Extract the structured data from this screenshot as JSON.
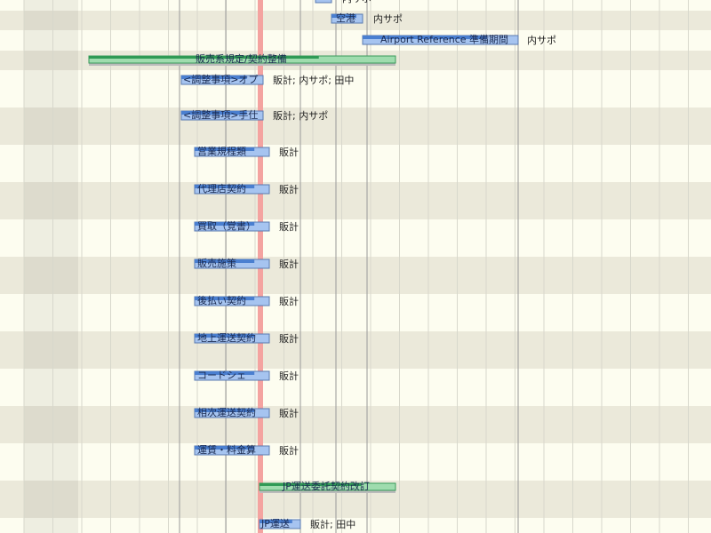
{
  "tasks": [
    {
      "resources": "内サポ"
    },
    {
      "name": "空港",
      "resources": "内サポ"
    },
    {
      "name": "Airport Reference 準備期間",
      "resources": "内サポ"
    },
    {
      "name": "販売系規定/契約整備"
    },
    {
      "name": "<調整事項>オプ",
      "resources": "販計; 内サポ; 田中"
    },
    {
      "name": "<調整事項>手仕",
      "resources": "販計; 内サポ"
    },
    {
      "name": "営業規程類",
      "resources": "販計"
    },
    {
      "name": "代理店契約",
      "resources": "販計"
    },
    {
      "name": "買取（覚書）",
      "resources": "販計"
    },
    {
      "name": "販売施策",
      "resources": "販計"
    },
    {
      "name": "後払い契約",
      "resources": "販計"
    },
    {
      "name": "地上運送契約",
      "resources": "販計"
    },
    {
      "name": "コードシェ",
      "resources": "販計"
    },
    {
      "name": "相次運送契約",
      "resources": "販計"
    },
    {
      "name": "運賃・料金算",
      "resources": "販計"
    },
    {
      "name": "JP運送委託契約改訂"
    },
    {
      "name": "JP運送",
      "resources": "販計; 田中"
    }
  ]
}
